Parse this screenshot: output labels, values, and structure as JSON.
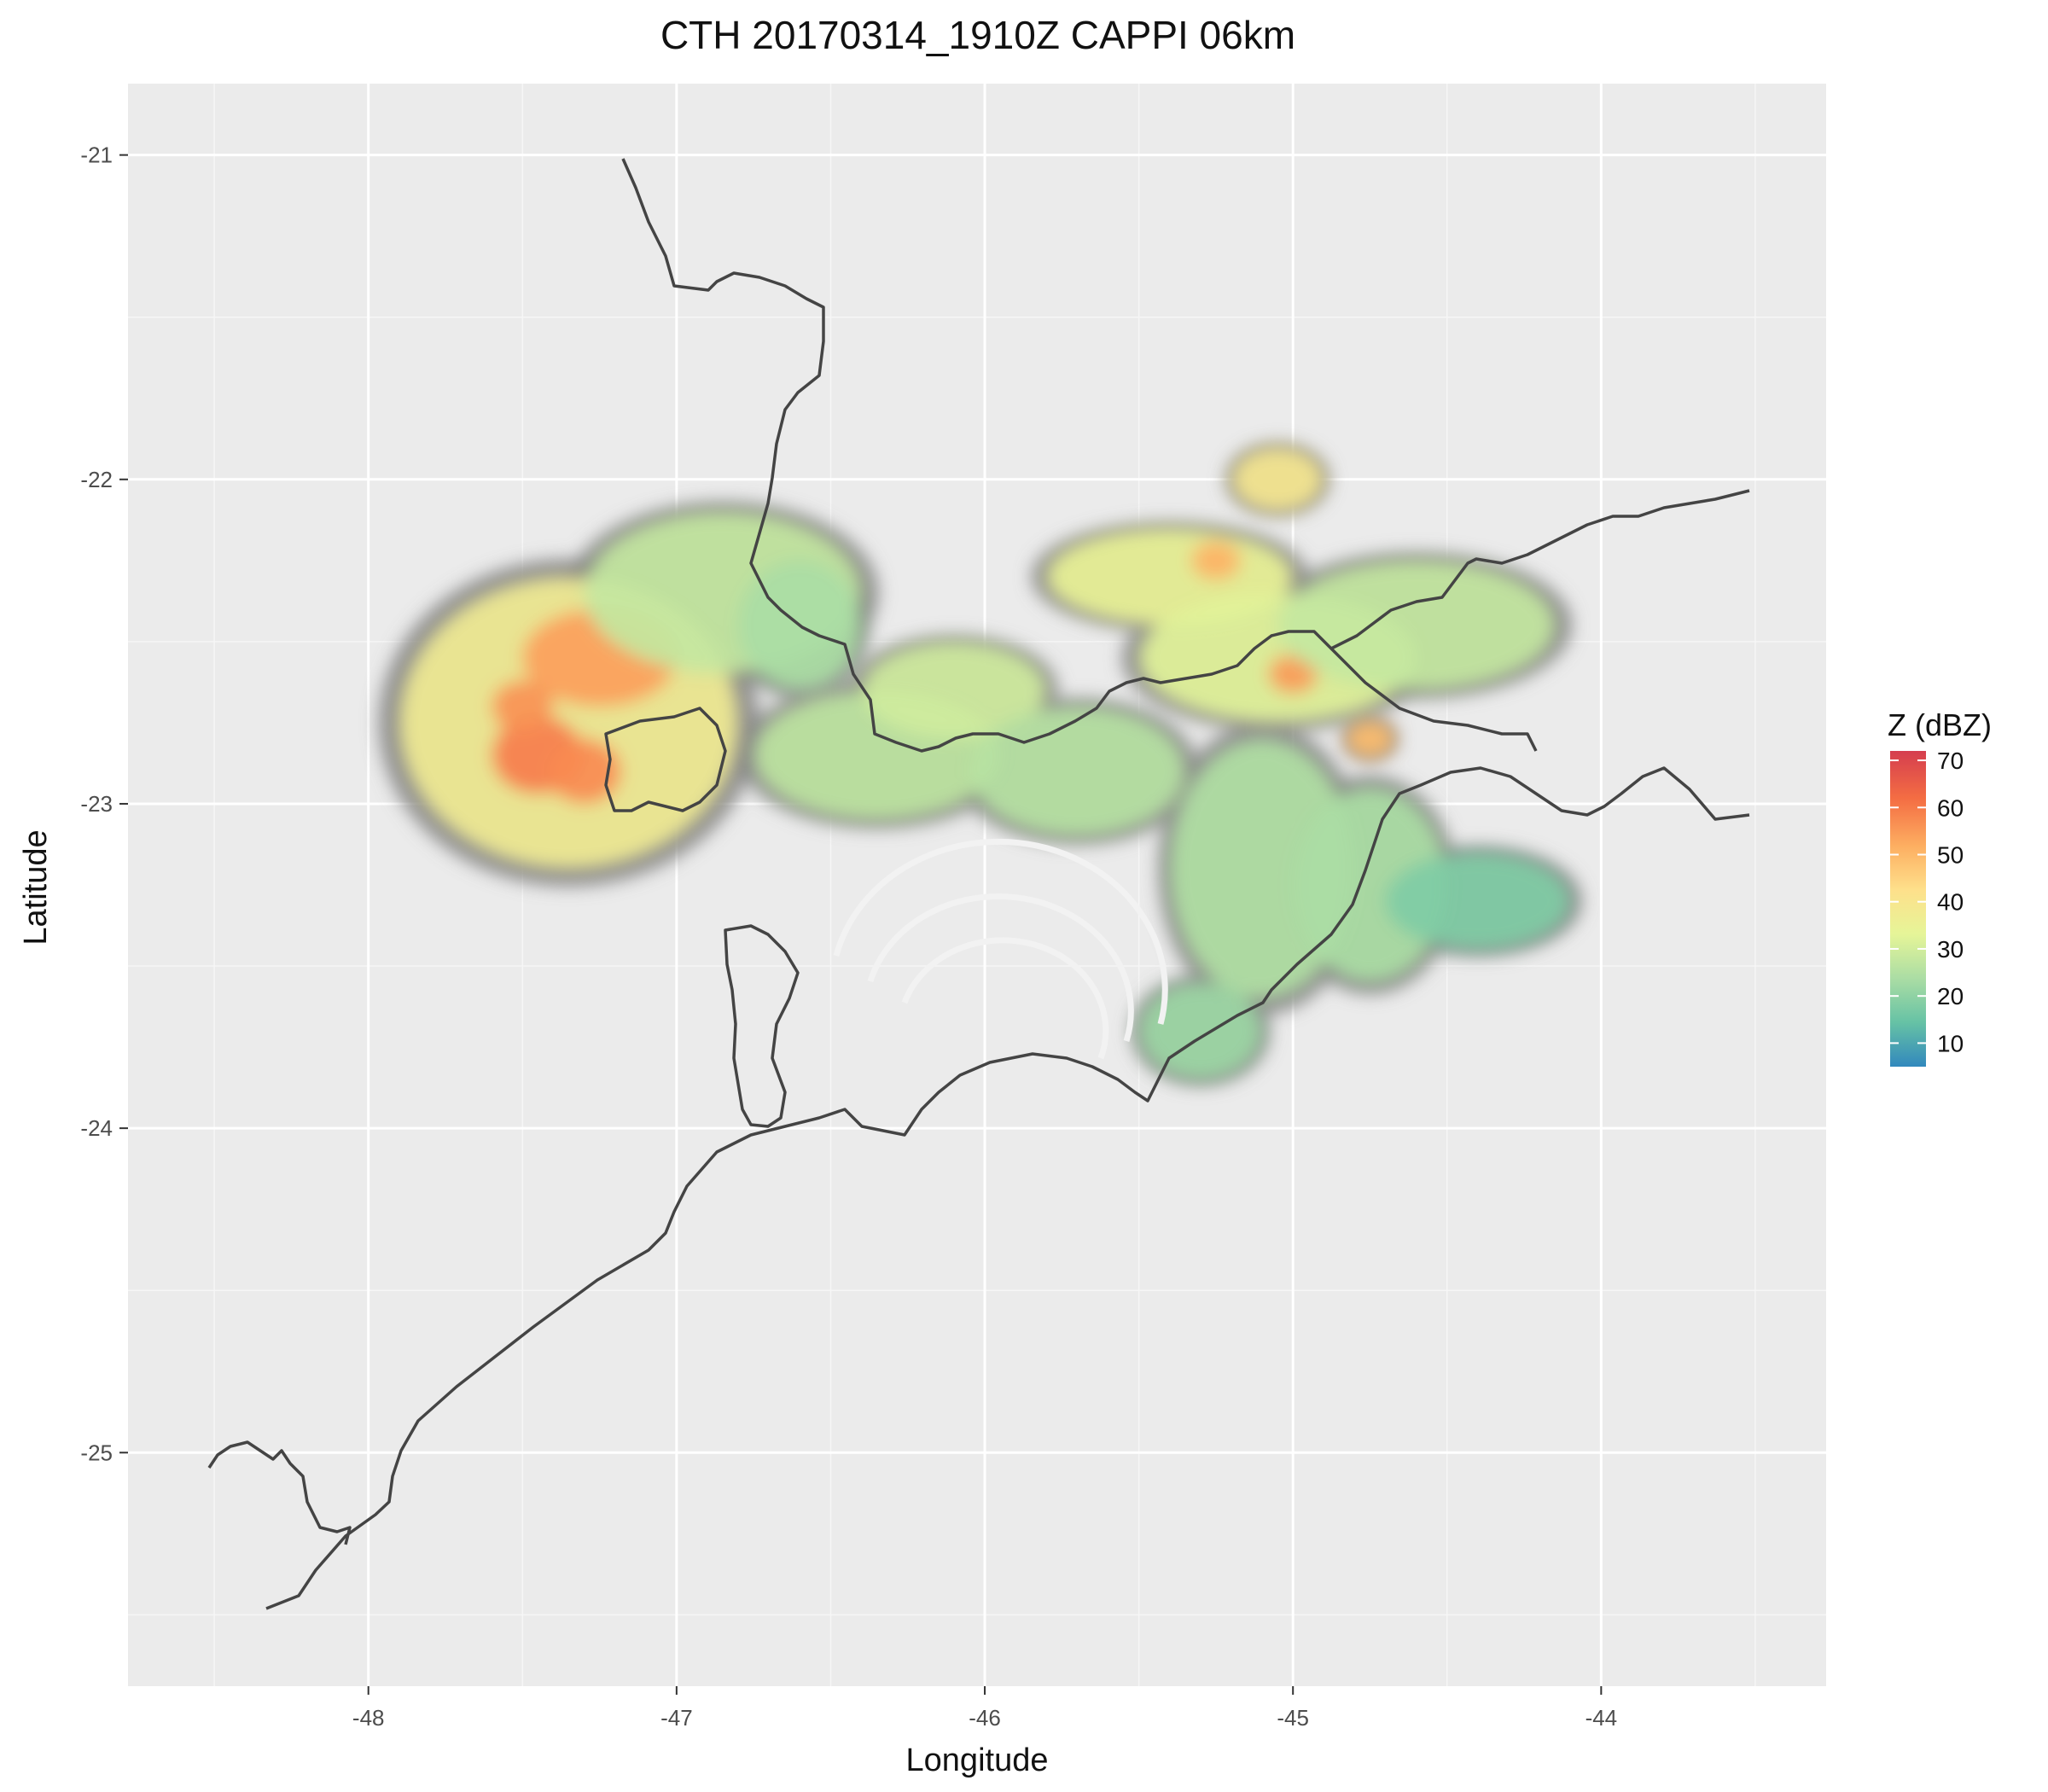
{
  "chart_data": {
    "type": "heatmap",
    "title": "CTH 20170314_1910Z  CAPPI 06km",
    "xlabel": "Longitude",
    "ylabel": "Latitude",
    "xlim": [
      -48.78,
      -43.27
    ],
    "ylim": [
      -25.72,
      -20.78
    ],
    "x_ticks": [
      -48,
      -47,
      -46,
      -45,
      -44
    ],
    "y_ticks": [
      -21,
      -22,
      -23,
      -24,
      -25
    ],
    "x_tick_labels": [
      "-48",
      "-47",
      "-46",
      "-45",
      "-44"
    ],
    "y_tick_labels": [
      "-21",
      "-22",
      "-23",
      "-24",
      "-25"
    ],
    "grid": true,
    "radar_center": {
      "lon": -46.0,
      "lat": -23.3
    },
    "colorscale": {
      "title": "Z (dBZ)",
      "min": 5,
      "max": 72,
      "ticks": [
        10,
        20,
        30,
        40,
        50,
        60,
        70
      ],
      "tick_labels": [
        "10",
        "20",
        "30",
        "40",
        "50",
        "60",
        "70"
      ],
      "colors": [
        "#3288bd",
        "#66c2a5",
        "#abdda4",
        "#e6f598",
        "#fee08b",
        "#fdae61",
        "#f46d43",
        "#d53e4f"
      ]
    },
    "no_data_color": "#7f7f7f",
    "panel_color": "#ebebeb",
    "legend": "right",
    "echo_cells": [
      {
        "lon": -47.35,
        "lat": -22.75,
        "rx": 0.55,
        "ry": 0.45,
        "z": 38
      },
      {
        "lon": -47.25,
        "lat": -22.55,
        "rx": 0.25,
        "ry": 0.15,
        "z": 55
      },
      {
        "lon": -47.45,
        "lat": -22.85,
        "rx": 0.15,
        "ry": 0.12,
        "z": 60
      },
      {
        "lon": -47.3,
        "lat": -22.9,
        "rx": 0.12,
        "ry": 0.1,
        "z": 58
      },
      {
        "lon": -47.5,
        "lat": -22.7,
        "rx": 0.1,
        "ry": 0.08,
        "z": 57
      },
      {
        "lon": -46.85,
        "lat": -22.35,
        "rx": 0.45,
        "ry": 0.25,
        "z": 28
      },
      {
        "lon": -46.6,
        "lat": -22.45,
        "rx": 0.2,
        "ry": 0.2,
        "z": 24
      },
      {
        "lon": -46.35,
        "lat": -22.85,
        "rx": 0.4,
        "ry": 0.2,
        "z": 27
      },
      {
        "lon": -46.1,
        "lat": -22.65,
        "rx": 0.3,
        "ry": 0.15,
        "z": 30
      },
      {
        "lon": -45.7,
        "lat": -22.9,
        "rx": 0.35,
        "ry": 0.2,
        "z": 26
      },
      {
        "lon": -45.4,
        "lat": -22.3,
        "rx": 0.4,
        "ry": 0.15,
        "z": 35
      },
      {
        "lon": -45.25,
        "lat": -22.25,
        "rx": 0.08,
        "ry": 0.06,
        "z": 52
      },
      {
        "lon": -45.05,
        "lat": -22.55,
        "rx": 0.45,
        "ry": 0.2,
        "z": 33
      },
      {
        "lon": -45.0,
        "lat": -22.6,
        "rx": 0.08,
        "ry": 0.06,
        "z": 56
      },
      {
        "lon": -44.6,
        "lat": -22.45,
        "rx": 0.45,
        "ry": 0.2,
        "z": 28
      },
      {
        "lon": -45.05,
        "lat": -22.0,
        "rx": 0.15,
        "ry": 0.1,
        "z": 40
      },
      {
        "lon": -45.1,
        "lat": -23.2,
        "rx": 0.3,
        "ry": 0.4,
        "z": 25
      },
      {
        "lon": -44.75,
        "lat": -23.25,
        "rx": 0.25,
        "ry": 0.3,
        "z": 24
      },
      {
        "lon": -44.4,
        "lat": -23.3,
        "rx": 0.3,
        "ry": 0.15,
        "z": 18
      },
      {
        "lon": -45.3,
        "lat": -23.7,
        "rx": 0.2,
        "ry": 0.15,
        "z": 22
      },
      {
        "lon": -44.75,
        "lat": -22.8,
        "rx": 0.08,
        "ry": 0.06,
        "z": 50
      }
    ]
  }
}
